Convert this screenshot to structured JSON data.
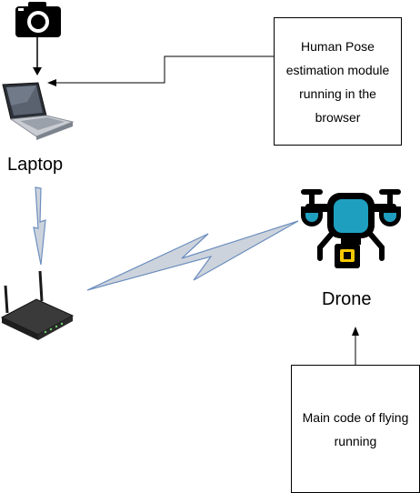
{
  "nodes": {
    "laptop": {
      "label": "Laptop"
    },
    "drone": {
      "label": "Drone"
    }
  },
  "boxes": {
    "pose_module": {
      "text": "Human Pose\nestimation module\nrunning in the\nbrowser"
    },
    "flying_code": {
      "text": "Main code of flying\nrunning"
    }
  },
  "icons": {
    "camera": "camera-icon",
    "laptop": "laptop-icon",
    "router": "router-icon",
    "drone": "drone-icon"
  },
  "colors": {
    "wireless_fill": "#cdd3dc",
    "wireless_stroke": "#6c8ebf",
    "drone_body": "#1f9fbf",
    "drone_accent": "#f5c800",
    "ink": "#000000"
  }
}
